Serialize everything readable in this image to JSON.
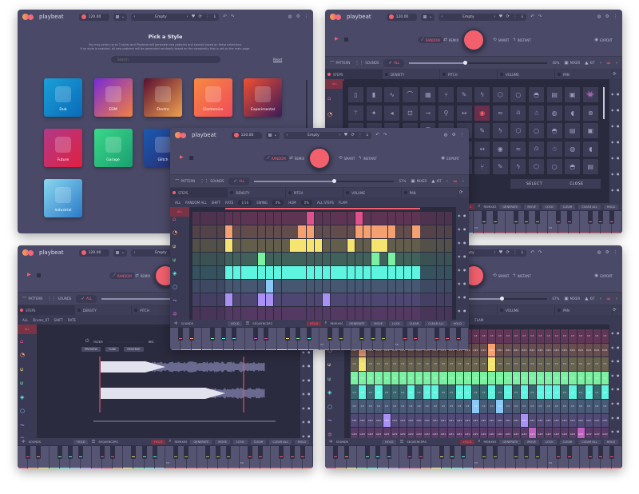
{
  "app": {
    "name": "playbeat",
    "bpm": "120.00",
    "pattern": "Empty"
  },
  "colors": {
    "accent": "#f2606e",
    "rows": [
      "#e0508a",
      "#f4a070",
      "#f5e470",
      "#7af0a0",
      "#5ef5e0",
      "#8ac8f5",
      "#a890f5",
      "#c060c0"
    ]
  },
  "hero": {
    "random": "RANDOM",
    "remix": "REMIX",
    "smart": "SMART",
    "instant": "INSTANT",
    "export": "EXPORT"
  },
  "controls": {
    "pattern": "PATTERN",
    "sounds": "SOUNDS",
    "all": "ALL",
    "mixer": "MIXER",
    "kit": "KIT"
  },
  "lanes": [
    "STEPS",
    "DENSITY",
    "PITCH",
    "VOLUME",
    "PAN"
  ],
  "bottom": {
    "sounds": "SOUNDS",
    "sequencers": "SEQUENCERS",
    "remixes": "REMIXES",
    "hold": "HOLD",
    "actions": [
      "GENERATE",
      "MOVE",
      "LOCK",
      "CLEAR",
      "CLEAR ALL"
    ],
    "key_labels": [
      "C3",
      "C4"
    ]
  },
  "style_picker": {
    "title": "Pick a Style",
    "description_1": "You may select up to 3 styles and Playbeat will generate new patterns and sounds based on these selections.",
    "description_2": "If no style is selected, all new patterns will be generated randomly based on the complexity that is set on the main page.",
    "search_placeholder": "Search",
    "reset": "Reset",
    "styles": [
      {
        "name": "Dub",
        "gradient": [
          "#1aa0d8",
          "#0a6ab8"
        ]
      },
      {
        "name": "EDM",
        "gradient": [
          "#7a2ad8",
          "#f08040"
        ]
      },
      {
        "name": "Electro",
        "gradient": [
          "#5a1030",
          "#f0a050"
        ]
      },
      {
        "name": "Electronica",
        "gradient": [
          "#f78a40",
          "#f04a5a"
        ]
      },
      {
        "name": "Experimental",
        "gradient": [
          "#f05030",
          "#3a1a5a"
        ]
      },
      {
        "name": "Future",
        "gradient": [
          "#b03a8a",
          "#e02040"
        ]
      },
      {
        "name": "Garage",
        "gradient": [
          "#3ad88a",
          "#1aa070"
        ]
      },
      {
        "name": "Glitch",
        "gradient": [
          "#1a5ab0",
          "#2a2a70"
        ]
      },
      {
        "name": "House",
        "gradient": [
          "#f5a060",
          "#9a4ad8"
        ]
      },
      {
        "name": "IDM",
        "gradient": [
          "#1a3a3a",
          "#2ab060"
        ]
      },
      {
        "name": "Industrial",
        "gradient": [
          "#8ad8f0",
          "#2a7ac8"
        ]
      }
    ]
  },
  "sound_picker": {
    "complexity": "40%",
    "select": "SELECT",
    "close": "CLOSE",
    "sidebar_all": "ALL",
    "icons": [
      "sampler",
      "battery",
      "wave",
      "curve",
      "keyboard",
      "tuning-fork",
      "pen",
      "lightning",
      "hexagon",
      "circle",
      "glasses",
      "jar",
      "box",
      "invader",
      "bird",
      "speaker",
      "mic",
      "drum",
      "key",
      "broadcast",
      "spark",
      "hand",
      "robot",
      "egg",
      "cloud",
      "saxophone",
      "guitar",
      "synth",
      "headphones"
    ],
    "selected_index": 21
  },
  "waveform_view": {
    "complexity": "57%",
    "sample_name": "Drums_07",
    "filter": "FILTER",
    "res": "RES",
    "preview": "PREVIEW",
    "tune": "TUNE",
    "reverse": "REVERSE"
  },
  "sequencer_view": {
    "complexity": "57%",
    "toolbar": {
      "all": "ALL",
      "name": "RANDOM ALL",
      "shift": "SHIFT",
      "rate": "RATE",
      "rate_value": "1/16",
      "swing": "SWING",
      "swing_value": "0%",
      "hum": "HUM",
      "hum_value": "0%",
      "all_steps": "ALL STEPS",
      "flam": "FLAM"
    },
    "loop": [
      4,
      27
    ],
    "rows": [
      [
        14,
        20
      ],
      [
        4,
        13,
        14,
        20,
        21,
        22,
        23,
        24,
        27
      ],
      [
        4,
        12,
        13,
        14,
        15,
        19,
        22,
        23
      ],
      [
        8,
        22,
        24
      ],
      [
        4,
        5,
        6,
        7,
        8,
        9,
        10,
        11,
        12,
        13,
        14,
        15,
        16,
        17,
        18,
        19,
        20,
        21,
        22,
        23,
        24,
        25,
        26,
        27
      ],
      [
        9
      ],
      [
        4,
        8,
        9,
        16
      ],
      []
    ]
  },
  "note_view": {
    "complexity": "67%",
    "toolbar": {
      "scale": "SCALE",
      "scale_value": "Chromatic",
      "snap": "SNAP TO SCALE",
      "custom_range": "CUSTOM RANGE",
      "from": "C3",
      "to": "B3",
      "flam": "FLAM"
    },
    "row_notes": [
      "C3",
      "D#1",
      "C3",
      "C3",
      "C3",
      "C3",
      "A#1",
      "G#2"
    ],
    "rows": [
      [
        1,
        9,
        12
      ],
      [
        1,
        17
      ],
      [
        1,
        17
      ],
      [
        0,
        1,
        2,
        3,
        4,
        5,
        6,
        7,
        8,
        9,
        10,
        11,
        12,
        13,
        14,
        15,
        16,
        17,
        18,
        19,
        20,
        21,
        22,
        23,
        24,
        25,
        26,
        27,
        28,
        29,
        30,
        31
      ],
      [
        1,
        3,
        7,
        9,
        10,
        13,
        14,
        17,
        19,
        21,
        23,
        24,
        25,
        27,
        29,
        31
      ],
      [
        15,
        18
      ],
      [
        4,
        21
      ],
      [
        22,
        28
      ]
    ]
  }
}
